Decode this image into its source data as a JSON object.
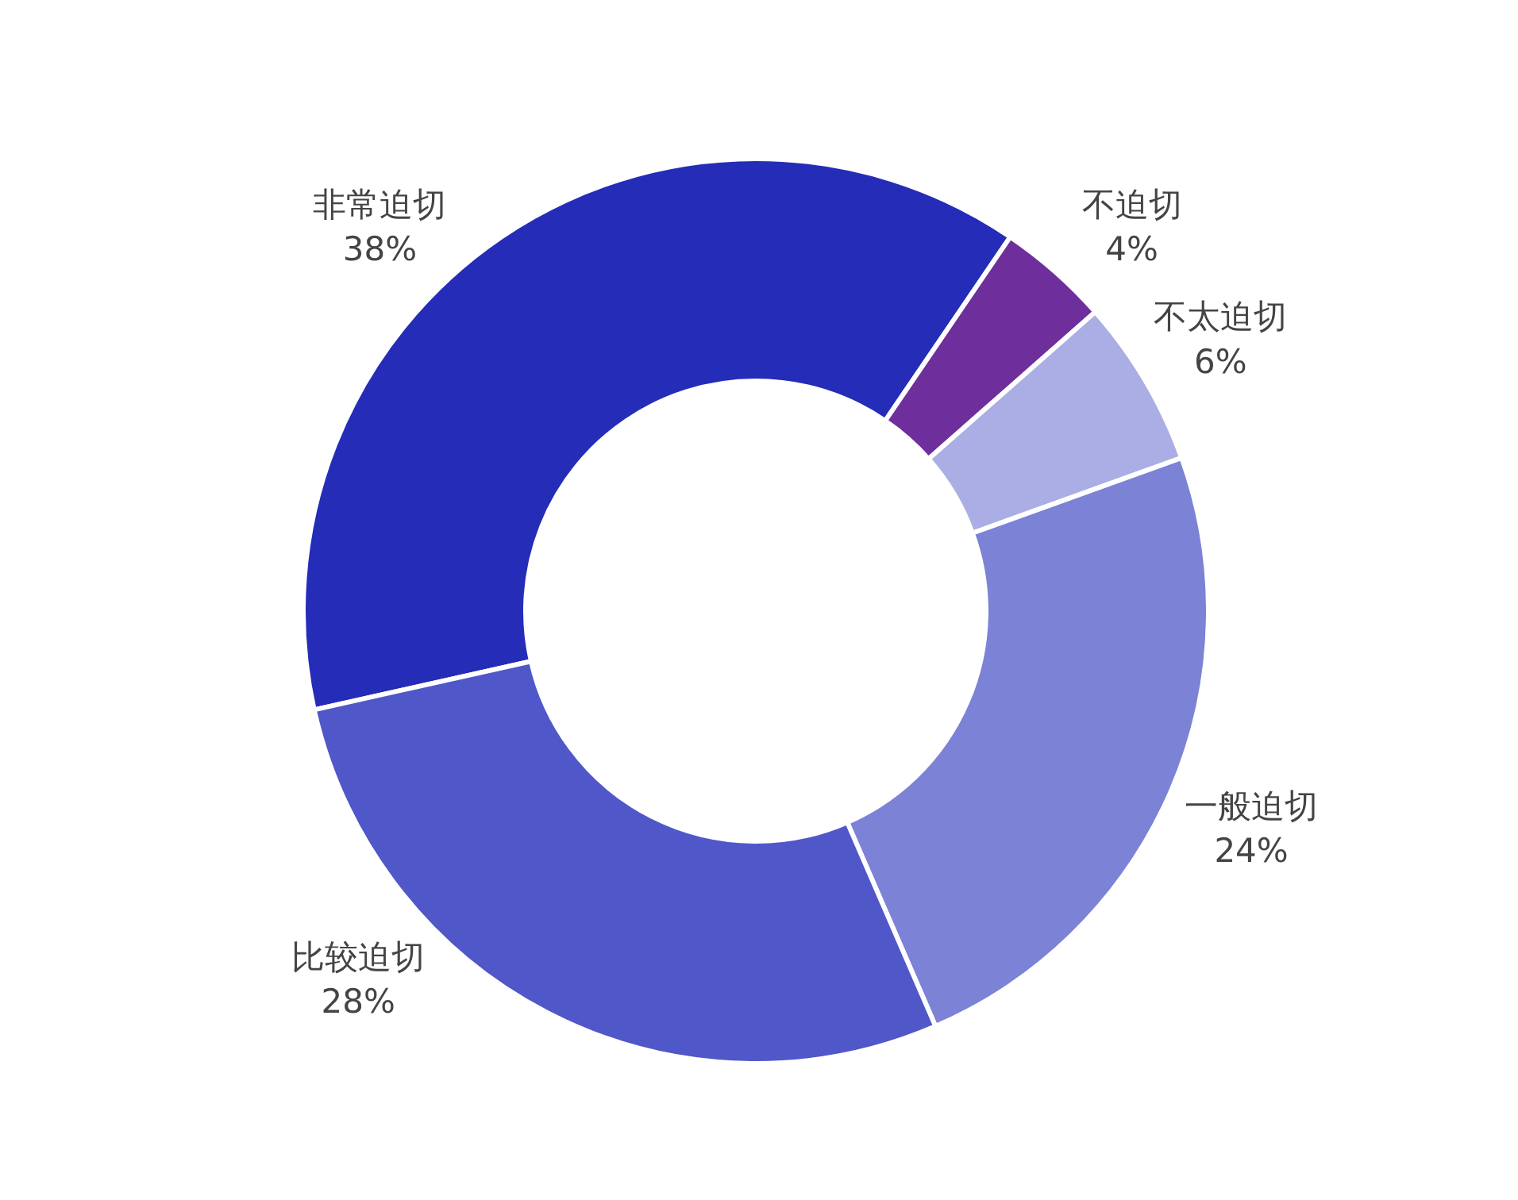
{
  "chart_data": {
    "type": "donut",
    "categories": [
      "非常迫切",
      "不迫切",
      "不太迫切",
      "一般迫切",
      "比较迫切"
    ],
    "values": [
      38,
      4,
      6,
      24,
      28
    ],
    "value_labels": [
      "38%",
      "4%",
      "6%",
      "24%",
      "28%"
    ],
    "colors": [
      "#252cb8",
      "#6e2f9c",
      "#aaaee4",
      "#7c82d5",
      "#5057c8"
    ]
  }
}
